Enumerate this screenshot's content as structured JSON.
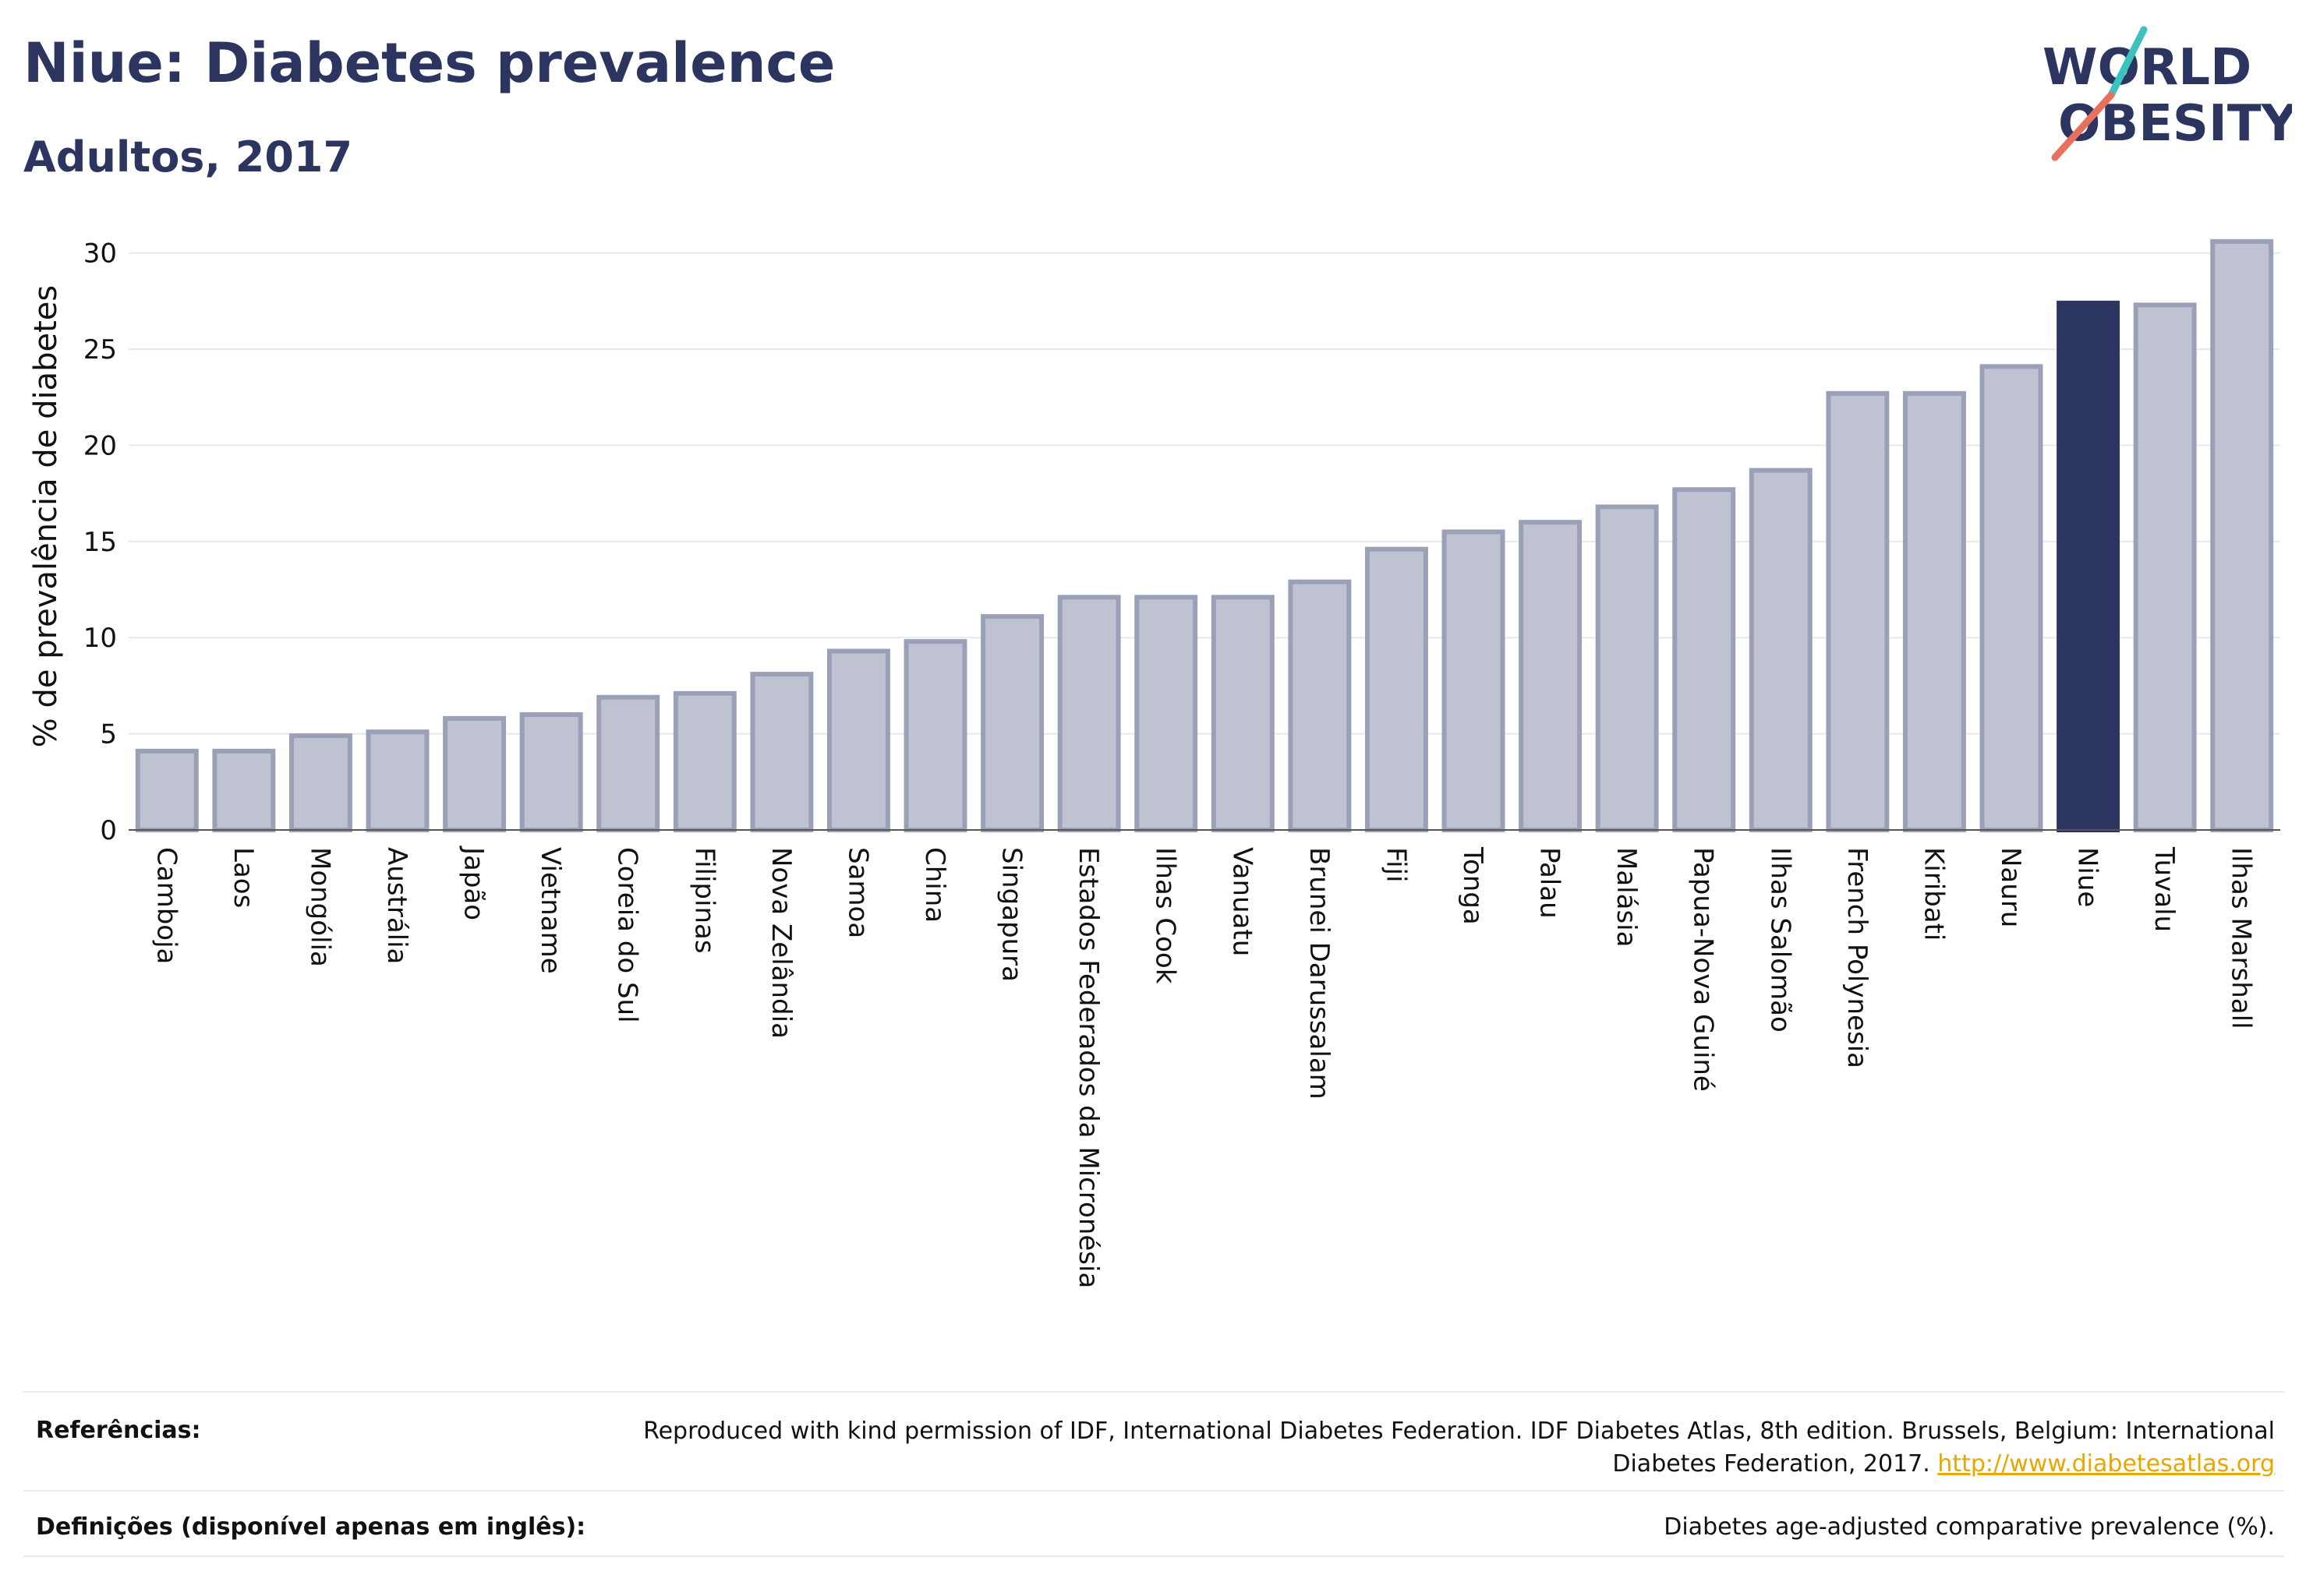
{
  "header": {
    "title": "Niue: Diabetes prevalence",
    "subtitle": "Adultos, 2017",
    "logo_line1": "WORLD",
    "logo_line2": "OBESITY"
  },
  "colors": {
    "bar": "#bfc2d0",
    "bar_stroke": "#9aa0b8",
    "highlight": "#2b355f",
    "grid": "#e6e8ee",
    "logo_slash_teal": "#3cc3c0",
    "logo_slash_coral": "#e8705c",
    "link": "#e8a700"
  },
  "chart_data": {
    "type": "bar",
    "ylabel": "% de prevalência de diabetes",
    "ylim": [
      0,
      31
    ],
    "yticks": [
      "0",
      "5",
      "10",
      "15",
      "20",
      "25",
      "30"
    ],
    "highlight": "Niue",
    "categories": [
      "Camboja",
      "Laos",
      "Mongólia",
      "Austrália",
      "Japão",
      "Vietname",
      "Coreia do Sul",
      "Filipinas",
      "Nova Zelândia",
      "Samoa",
      "China",
      "Singapura",
      "Estados Federados da Micronésia",
      "Ilhas Cook",
      "Vanuatu",
      "Brunei Darussalam",
      "Fiji",
      "Tonga",
      "Palau",
      "Malásia",
      "Papua-Nova Guiné",
      "Ilhas Salomão",
      "French Polynesia",
      "Kiribati",
      "Nauru",
      "Niue",
      "Tuvalu",
      "Ilhas Marshall"
    ],
    "values": [
      4.1,
      4.1,
      4.9,
      5.1,
      5.8,
      6.0,
      6.9,
      7.1,
      8.1,
      9.3,
      9.8,
      11.1,
      12.1,
      12.1,
      12.1,
      12.9,
      14.6,
      15.5,
      16.0,
      16.8,
      17.7,
      18.7,
      22.7,
      22.7,
      24.1,
      27.4,
      27.3,
      30.6
    ]
  },
  "footer": {
    "references_label": "Referências:",
    "references_text": "Reproduced with kind permission of IDF, International Diabetes Federation. IDF Diabetes Atlas, 8th edition. Brussels, Belgium: International Diabetes Federation, 2017.",
    "references_link": "http://www.diabetesatlas.org",
    "definitions_label": "Definições (disponível apenas em inglês):",
    "definitions_text": "Diabetes age-adjusted comparative prevalence (%)."
  }
}
